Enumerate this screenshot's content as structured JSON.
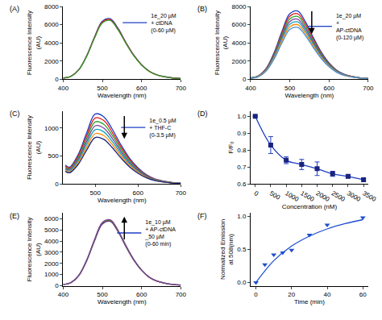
{
  "chart_data": [
    {
      "type": "line",
      "title": "(A)",
      "x_label": "Wavelength (nm)",
      "y_label": "Fluorescence Intensity\n(AU)",
      "xlim": [
        400,
        700
      ],
      "xticks": [
        400,
        500,
        600,
        700
      ],
      "ylim": [
        0,
        8000
      ],
      "yticks": [
        0,
        2000,
        4000,
        6000,
        8000
      ],
      "grid": false,
      "legend": "top right",
      "x": [
        400,
        420,
        440,
        460,
        480,
        500,
        520,
        540,
        560,
        580,
        600,
        620,
        640,
        660,
        680,
        700
      ],
      "series": [
        {
          "name": "1e_20 µM\n+ ctDNA\n(0-60 µM)",
          "color": "#1f3fc4",
          "values": [
            133,
            333,
            1064,
            2594,
            4655,
            6384,
            6650,
            5586,
            4057,
            2660,
            1596,
            865,
            466,
            266,
            133,
            67
          ]
        },
        {
          "color": "#e41a1c",
          "values": [
            131,
            328,
            1048,
            2555,
            4585,
            6288,
            6550,
            5502,
            3996,
            2620,
            1572,
            852,
            459,
            262,
            131,
            66
          ]
        },
        {
          "color": "#2ca02c",
          "values": [
            129,
            323,
            1032,
            2516,
            4515,
            6192,
            6450,
            5418,
            3935,
            2580,
            1548,
            839,
            452,
            258,
            129,
            65
          ]
        }
      ]
    },
    {
      "type": "line",
      "title": "(B)",
      "x_label": "Wavelength (nm)",
      "y_label": "Fluorescence Intensity\n(AU)",
      "xlim": [
        400,
        700
      ],
      "xticks": [
        400,
        500,
        600,
        700
      ],
      "ylim": [
        0,
        8000
      ],
      "yticks": [
        0,
        2000,
        4000,
        6000,
        8000
      ],
      "grid": false,
      "legend": "top right",
      "x": [
        400,
        420,
        440,
        460,
        480,
        500,
        520,
        540,
        560,
        580,
        600,
        620,
        640,
        660,
        680,
        700
      ],
      "series": [
        {
          "name": "1e_20 µM\n+\nAP-ctDNA\n(0-120 µM)",
          "color": "#1f3fc4",
          "values": [
            150,
            375,
            1200,
            2925,
            5250,
            7200,
            7500,
            6300,
            4575,
            3000,
            1800,
            975,
            525,
            300,
            150,
            75
          ]
        },
        {
          "color": "#e41a1c",
          "values": [
            144,
            360,
            1152,
            2808,
            5040,
            6912,
            7200,
            6048,
            4392,
            2880,
            1728,
            936,
            504,
            288,
            144,
            72
          ]
        },
        {
          "color": "#2ca02c",
          "values": [
            138,
            345,
            1104,
            2691,
            4830,
            6624,
            6900,
            5796,
            4209,
            2760,
            1656,
            897,
            483,
            276,
            138,
            69
          ]
        },
        {
          "color": "#7b3fa0",
          "values": [
            132,
            330,
            1056,
            2574,
            4620,
            6336,
            6600,
            5544,
            4026,
            2640,
            1584,
            858,
            462,
            264,
            132,
            66
          ]
        },
        {
          "color": "#17a2b8",
          "values": [
            126,
            315,
            1008,
            2457,
            4410,
            6048,
            6300,
            5292,
            3843,
            2520,
            1512,
            819,
            441,
            252,
            126,
            63
          ]
        },
        {
          "color": "#ff8c00",
          "values": [
            120,
            300,
            960,
            2340,
            4200,
            5760,
            6000,
            5040,
            3660,
            2400,
            1440,
            780,
            420,
            240,
            120,
            60
          ]
        },
        {
          "color": "#4a90d9",
          "values": [
            114,
            285,
            912,
            2223,
            3990,
            5472,
            5700,
            4788,
            3477,
            2280,
            1368,
            741,
            399,
            228,
            114,
            57
          ]
        }
      ]
    },
    {
      "type": "line",
      "title": "(C)",
      "x_label": "Wavelength (nm)",
      "y_label": "Fluorescence Intensity\n(AU)",
      "xlim": [
        425,
        700
      ],
      "xticks": [
        500,
        600,
        700
      ],
      "ylim": [
        0,
        1300
      ],
      "yticks": [
        0,
        500,
        1000
      ],
      "grid": false,
      "legend": "top right",
      "x": [
        430,
        440,
        460,
        480,
        500,
        520,
        540,
        560,
        580,
        600,
        620,
        640,
        660,
        680,
        700
      ],
      "series": [
        {
          "name": "1e_0.5 µM\n+ THF-C\n(0-3.5 µM)",
          "color": "#1f3fc4",
          "values": [
            338,
            300,
            525,
            913,
            1250,
            1200,
            975,
            700,
            463,
            288,
            163,
            88,
            50,
            25,
            13
          ]
        },
        {
          "color": "#e41a1c",
          "values": [
            319,
            283,
            496,
            861,
            1180,
            1133,
            920,
            661,
            437,
            271,
            153,
            83,
            47,
            24,
            12
          ]
        },
        {
          "color": "#2ca02c",
          "values": [
            300,
            266,
            466,
            810,
            1110,
            1066,
            866,
            622,
            411,
            255,
            144,
            78,
            44,
            22,
            11
          ]
        },
        {
          "color": "#7b3fa0",
          "values": [
            281,
            250,
            437,
            759,
            1040,
            998,
            811,
            582,
            385,
            239,
            135,
            73,
            42,
            21,
            10
          ]
        },
        {
          "color": "#17a2b8",
          "values": [
            262,
            233,
            407,
            708,
            970,
            931,
            757,
            543,
            359,
            223,
            126,
            68,
            39,
            19,
            10
          ]
        },
        {
          "color": "#ff8c00",
          "values": [
            243,
            216,
            378,
            657,
            900,
            864,
            702,
            504,
            333,
            207,
            117,
            63,
            36,
            18,
            9
          ]
        },
        {
          "color": "#1a237e",
          "values": [
            224,
            199,
            349,
            606,
            830,
            797,
            647,
            465,
            307,
            191,
            108,
            58,
            33,
            17,
            8
          ]
        }
      ]
    },
    {
      "type": "line",
      "title": "(D)",
      "x_label": "Concentration (nM)",
      "y_label": "F/F₀",
      "xlim": [
        -150,
        3650
      ],
      "xticks": [
        0,
        500,
        1000,
        1500,
        2000,
        2500,
        3000,
        3500
      ],
      "ylim": [
        0.6,
        1.03
      ],
      "yticks": [
        0.6,
        0.7,
        0.8,
        0.9,
        {
          "value": 1.0,
          "label": "1.0"
        }
      ],
      "grid": false,
      "x": [
        0,
        500,
        1000,
        1500,
        2000,
        2500,
        3000,
        3500
      ],
      "series": [
        {
          "color": "#1f3fc4",
          "marker": "square",
          "values": [
            1.0,
            0.83,
            0.74,
            0.715,
            0.69,
            0.66,
            0.645,
            0.625
          ],
          "error": [
            0,
            0.05,
            0.02,
            0.03,
            0.04,
            0.015,
            0.01,
            0.01
          ]
        }
      ]
    },
    {
      "type": "line",
      "title": "(E)",
      "x_label": "Wavelength (nm)",
      "y_label": "Fluorescence Intensity\n(AU)",
      "xlim": [
        400,
        700
      ],
      "xticks": [
        400,
        500,
        600,
        700
      ],
      "ylim": [
        0,
        6500
      ],
      "yticks": [
        0,
        1000,
        2000,
        3000,
        4000,
        5000,
        6000
      ],
      "grid": false,
      "legend": "top right",
      "x": [
        400,
        420,
        440,
        460,
        480,
        500,
        520,
        540,
        560,
        580,
        600,
        620,
        640,
        660,
        680,
        700
      ],
      "series": [
        {
          "name": "1e_10 µM\n+ AP-ctDNA\n_50 µM\n(0-60 min)",
          "color": "#1f3fc4",
          "values": [
            115,
            288,
            920,
            2243,
            4025,
            5520,
            5750,
            4830,
            3508,
            2300,
            1380,
            748,
            403,
            230,
            115,
            58
          ]
        },
        {
          "color": "#e41a1c",
          "values": [
            116,
            290,
            928,
            2262,
            4060,
            5568,
            5800,
            4872,
            3538,
            2320,
            1392,
            754,
            406,
            232,
            116,
            58
          ]
        },
        {
          "color": "#2ca02c",
          "values": [
            117,
            293,
            936,
            2282,
            4095,
            5616,
            5850,
            4914,
            3569,
            2340,
            1404,
            761,
            410,
            234,
            117,
            59
          ]
        },
        {
          "color": "#7b3fa0",
          "values": [
            118,
            295,
            944,
            2301,
            4130,
            5664,
            5900,
            4956,
            3599,
            2360,
            1416,
            767,
            413,
            236,
            118,
            59
          ]
        }
      ]
    },
    {
      "type": "line",
      "title": "(F)",
      "x_label": "Time (min)",
      "y_label": "Normalized Emission\nat 508(nm)",
      "xlim": [
        -3,
        63
      ],
      "xticks": [
        0,
        20,
        40,
        60
      ],
      "ylim": [
        -0.05,
        1.05
      ],
      "yticks": [
        {
          "value": 0,
          "label": "0.0"
        },
        {
          "value": 0.5,
          "label": "0.5"
        },
        {
          "value": 1,
          "label": "1.0"
        }
      ],
      "grid": false,
      "series": [
        {
          "type": "scatter",
          "marker": "triangle-down",
          "color": "#1f4fd0",
          "x": [
            0,
            5,
            10,
            15,
            20,
            30,
            40,
            60
          ],
          "values": [
            0,
            0.27,
            0.42,
            0.45,
            0.49,
            0.72,
            0.87,
            0.98
          ]
        },
        {
          "type": "line",
          "color": "#1f4fd0",
          "x": [
            0,
            10,
            20,
            30,
            40,
            50,
            60
          ],
          "values": [
            0,
            0.33,
            0.55,
            0.7,
            0.81,
            0.89,
            0.95
          ]
        }
      ]
    }
  ]
}
